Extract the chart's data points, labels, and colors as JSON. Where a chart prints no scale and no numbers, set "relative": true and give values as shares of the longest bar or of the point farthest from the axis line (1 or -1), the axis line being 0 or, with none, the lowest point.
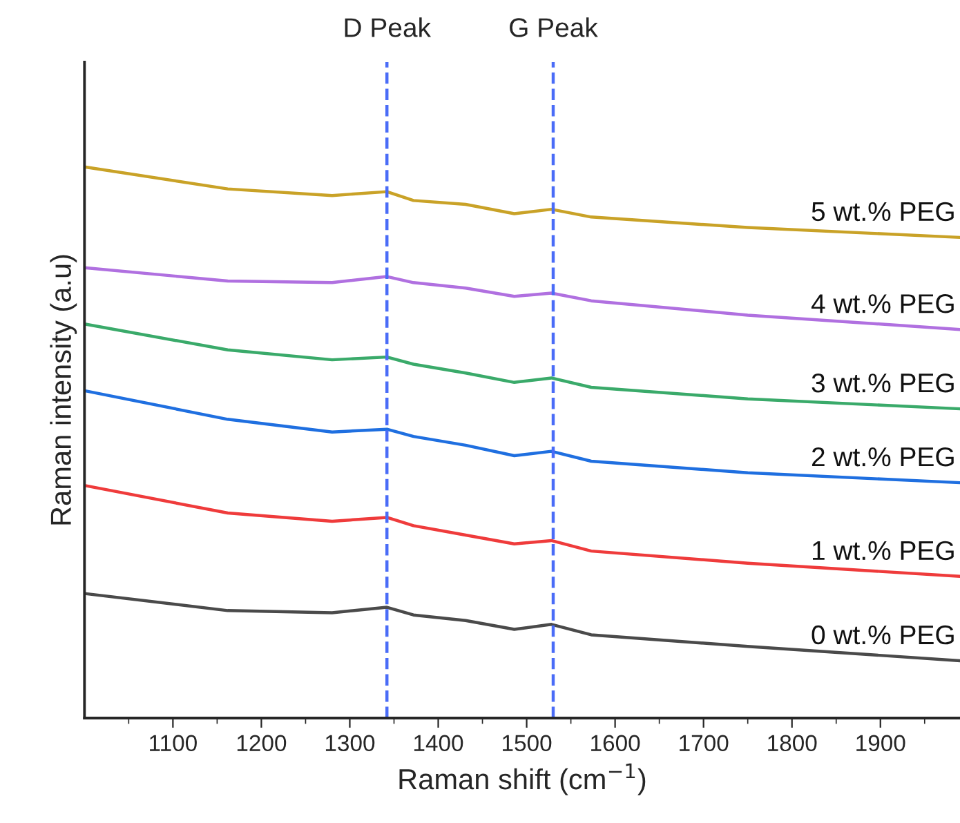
{
  "chart_data": {
    "type": "line",
    "relative": true,
    "xlabel": "Raman shift (cm$^{−1}$)",
    "ylabel": "Raman intensity (a.u)",
    "x": [
      1000,
      1162,
      1280,
      1342,
      1372,
      1431,
      1486,
      1528,
      1573,
      1750,
      1990
    ],
    "xlim": [
      1000,
      1990
    ],
    "xticks": [
      1100,
      1200,
      1300,
      1400,
      1500,
      1600,
      1700,
      1800,
      1900
    ],
    "grid": false,
    "legend": false,
    "marker": "none",
    "line_style": "solid",
    "series": [
      {
        "name": "0 wt.% PEG",
        "color": "#4a4a4a",
        "values": [
          0.226,
          0.195,
          0.191,
          0.201,
          0.187,
          0.177,
          0.161,
          0.17,
          0.151,
          0.13,
          0.104
        ]
      },
      {
        "name": "1 wt.% PEG",
        "color": "#ef3b3b",
        "values": [
          0.422,
          0.372,
          0.357,
          0.364,
          0.349,
          0.332,
          0.316,
          0.322,
          0.303,
          0.281,
          0.257
        ]
      },
      {
        "name": "2 wt.% PEG",
        "color": "#1f6fe0",
        "values": [
          0.594,
          0.542,
          0.519,
          0.524,
          0.511,
          0.495,
          0.476,
          0.484,
          0.466,
          0.445,
          0.427
        ]
      },
      {
        "name": "3 wt.% PEG",
        "color": "#3aaa6a",
        "values": [
          0.715,
          0.668,
          0.65,
          0.655,
          0.642,
          0.626,
          0.609,
          0.617,
          0.6,
          0.579,
          0.561
        ]
      },
      {
        "name": "4 wt.% PEG",
        "color": "#b070e0",
        "values": [
          0.817,
          0.793,
          0.79,
          0.801,
          0.79,
          0.78,
          0.765,
          0.771,
          0.757,
          0.731,
          0.705
        ]
      },
      {
        "name": "5 wt.% PEG",
        "color": "#c9a227",
        "values": [
          1.0,
          0.96,
          0.948,
          0.955,
          0.939,
          0.932,
          0.915,
          0.923,
          0.909,
          0.89,
          0.872
        ]
      }
    ],
    "ref_lines": [
      {
        "axis": "x",
        "value": 1342,
        "label": "D Peak",
        "color": "#4a6cf7",
        "line_style": "dashed"
      },
      {
        "axis": "x",
        "value": 1530,
        "label": "G Peak",
        "color": "#4a6cf7",
        "line_style": "dashed"
      }
    ]
  }
}
